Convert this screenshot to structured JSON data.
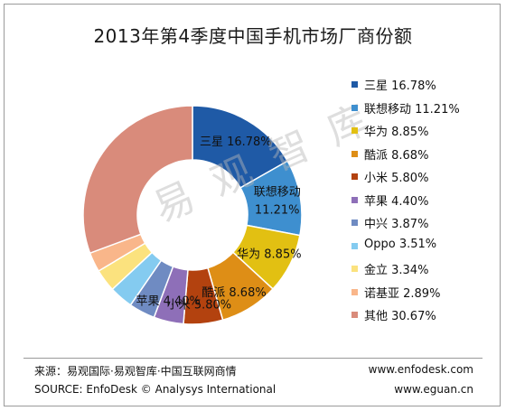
{
  "chart_data": {
    "type": "pie",
    "donut": true,
    "title": "2013年第4季度中国手机市场厂商份额",
    "unit": "%",
    "legend_position": "right",
    "series": [
      {
        "name": "三星",
        "value": 16.78,
        "label": "16.78%",
        "color": "#1f5aa6"
      },
      {
        "name": "联想移动",
        "value": 11.21,
        "label": "11.21%",
        "color": "#3e8fcf"
      },
      {
        "name": "华为",
        "value": 8.85,
        "label": "8.85%",
        "color": "#e2c012"
      },
      {
        "name": "酷派",
        "value": 8.68,
        "label": "8.68%",
        "color": "#de8e16"
      },
      {
        "name": "小米",
        "value": 5.8,
        "label": "5.80%",
        "color": "#b3420f"
      },
      {
        "name": "苹果",
        "value": 4.4,
        "label": "4.40%",
        "color": "#8e6fb8"
      },
      {
        "name": "中兴",
        "value": 3.87,
        "label": "3.87%",
        "color": "#6f8bc2"
      },
      {
        "name": "Oppo",
        "value": 3.51,
        "label": "3.51%",
        "color": "#84cbf0"
      },
      {
        "name": "金立",
        "value": 3.34,
        "label": "3.34%",
        "color": "#fbe27e"
      },
      {
        "name": "诺基亚",
        "value": 2.89,
        "label": "2.89%",
        "color": "#f9b68a"
      },
      {
        "name": "其他",
        "value": 30.67,
        "label": "30.67%",
        "color": "#d98b7b"
      }
    ]
  },
  "footer": {
    "source_cn": "来源：易观国际·易观智库·中国互联网商情",
    "source_en": "SOURCE: EnfoDesk © Analysys International",
    "url1": "www.enfodesk.com",
    "url2": "www.eguan.cn"
  },
  "watermark": "易 观 智 库"
}
